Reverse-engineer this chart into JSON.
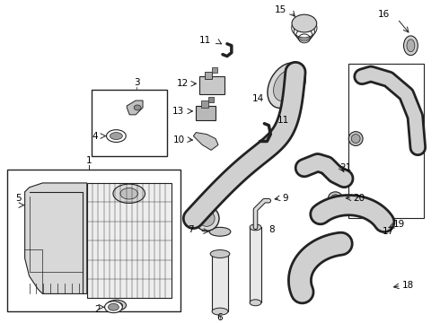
{
  "bg_color": "#ffffff",
  "line_color": "#222222",
  "label_color": "#000000",
  "fs": 7.5
}
